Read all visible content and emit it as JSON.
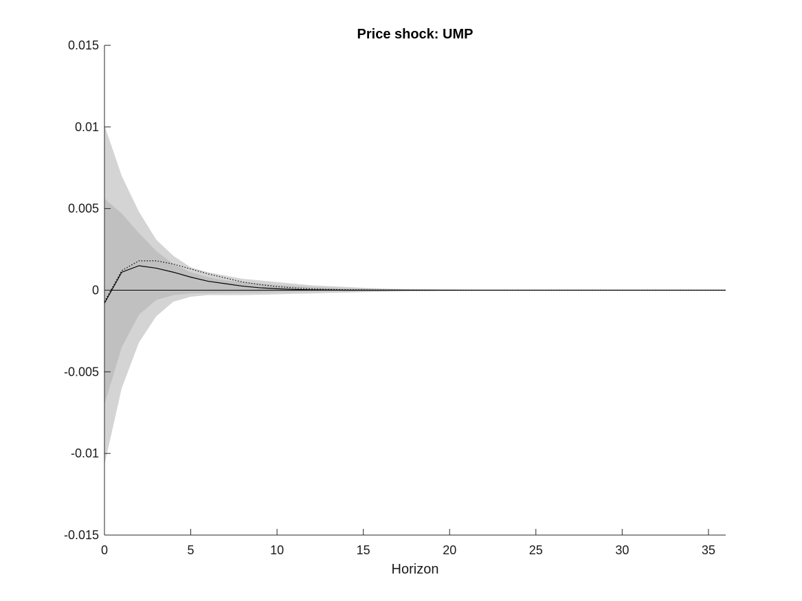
{
  "chart_data": {
    "type": "area",
    "title": "Price shock: UMP",
    "xlabel": "Horizon",
    "ylabel": "",
    "xlim": [
      0,
      36
    ],
    "ylim": [
      -0.015,
      0.015
    ],
    "xticks": [
      0,
      5,
      10,
      15,
      20,
      25,
      30,
      35
    ],
    "xtick_labels": [
      "0",
      "5",
      "10",
      "15",
      "20",
      "25",
      "30",
      "35"
    ],
    "yticks": [
      -0.015,
      -0.01,
      -0.005,
      0,
      0.005,
      0.01,
      0.015
    ],
    "ytick_labels": [
      "-0.015",
      "-0.01",
      "-0.005",
      "0",
      "0.005",
      "0.01",
      "0.015"
    ],
    "grid": false,
    "legend": "none",
    "colors": {
      "outer_band": "#d4d4d4",
      "inner_band": "#c0c0c0",
      "median_line": "#000000",
      "dotted_line": "#000000",
      "zero_line": "#000000"
    },
    "x": [
      0,
      1,
      2,
      3,
      4,
      5,
      6,
      7,
      8,
      9,
      10,
      11,
      12,
      13,
      14,
      15,
      16,
      17,
      18,
      19,
      20,
      21,
      22,
      23,
      24,
      25,
      26,
      27,
      28,
      29,
      30,
      31,
      32,
      33,
      34,
      35,
      36
    ],
    "series": [
      {
        "role": "outer_band",
        "upper": [
          0.0101,
          0.007,
          0.0048,
          0.0031,
          0.0021,
          0.0014,
          0.0011,
          0.0009,
          0.0007,
          0.0006,
          0.0005,
          0.0004,
          0.0003,
          0.00025,
          0.0002,
          0.00015,
          0.0001,
          8e-05,
          6e-05,
          5e-05,
          4e-05,
          3e-05,
          2e-05,
          2e-05,
          1e-05,
          1e-05,
          1e-05,
          5e-06,
          5e-06,
          0,
          0,
          0,
          0,
          0,
          0,
          0,
          0
        ],
        "lower": [
          -0.0107,
          -0.006,
          -0.0032,
          -0.0016,
          -0.0007,
          -0.0004,
          -0.0003,
          -0.0003,
          -0.0003,
          -0.00028,
          -0.00025,
          -0.00022,
          -0.0002,
          -0.00017,
          -0.00015,
          -0.00012,
          -0.0001,
          -8e-05,
          -6e-05,
          -5e-05,
          -4e-05,
          -3e-05,
          -2e-05,
          -2e-05,
          -1e-05,
          -1e-05,
          -1e-05,
          -5e-06,
          -5e-06,
          0,
          0,
          0,
          0,
          0,
          0,
          0,
          0
        ]
      },
      {
        "role": "inner_band",
        "upper": [
          0.0056,
          0.0047,
          0.0035,
          0.0024,
          0.0016,
          0.0011,
          0.0008,
          0.0006,
          0.0005,
          0.0004,
          0.00032,
          0.00025,
          0.0002,
          0.00016,
          0.00012,
          0.0001,
          8e-05,
          6e-05,
          5e-05,
          4e-05,
          3e-05,
          2e-05,
          2e-05,
          1e-05,
          1e-05,
          1e-05,
          5e-06,
          5e-06,
          0,
          0,
          0,
          0,
          0,
          0,
          0,
          0,
          0
        ],
        "lower": [
          -0.007,
          -0.0035,
          -0.0015,
          -0.0006,
          -0.0003,
          -0.0002,
          -0.00018,
          -0.00016,
          -0.00015,
          -0.00014,
          -0.00012,
          -0.0001,
          -9e-05,
          -8e-05,
          -7e-05,
          -6e-05,
          -5e-05,
          -4e-05,
          -3e-05,
          -2e-05,
          -2e-05,
          -1e-05,
          -1e-05,
          -1e-05,
          -5e-06,
          -5e-06,
          0,
          0,
          0,
          0,
          0,
          0,
          0,
          0,
          0,
          0,
          0
        ]
      },
      {
        "role": "median_line",
        "values": [
          -0.0008,
          0.0011,
          0.0015,
          0.00135,
          0.0011,
          0.0008,
          0.00055,
          0.0004,
          0.00025,
          0.00015,
          9e-05,
          5e-05,
          2e-05,
          1e-05,
          0,
          0,
          0,
          0,
          0,
          0,
          0,
          0,
          0,
          0,
          0,
          0,
          0,
          0,
          0,
          0,
          0,
          0,
          0,
          0,
          0,
          0,
          0
        ]
      },
      {
        "role": "dotted_line",
        "values": [
          -0.0007,
          0.0012,
          0.0018,
          0.0018,
          0.0016,
          0.0013,
          0.001,
          0.00075,
          0.0005,
          0.00035,
          0.00022,
          0.00014,
          8e-05,
          5e-05,
          3e-05,
          2e-05,
          1e-05,
          1e-05,
          0,
          0,
          0,
          0,
          0,
          0,
          0,
          0,
          0,
          0,
          0,
          0,
          0,
          0,
          0,
          0,
          0,
          0,
          0
        ]
      }
    ]
  }
}
